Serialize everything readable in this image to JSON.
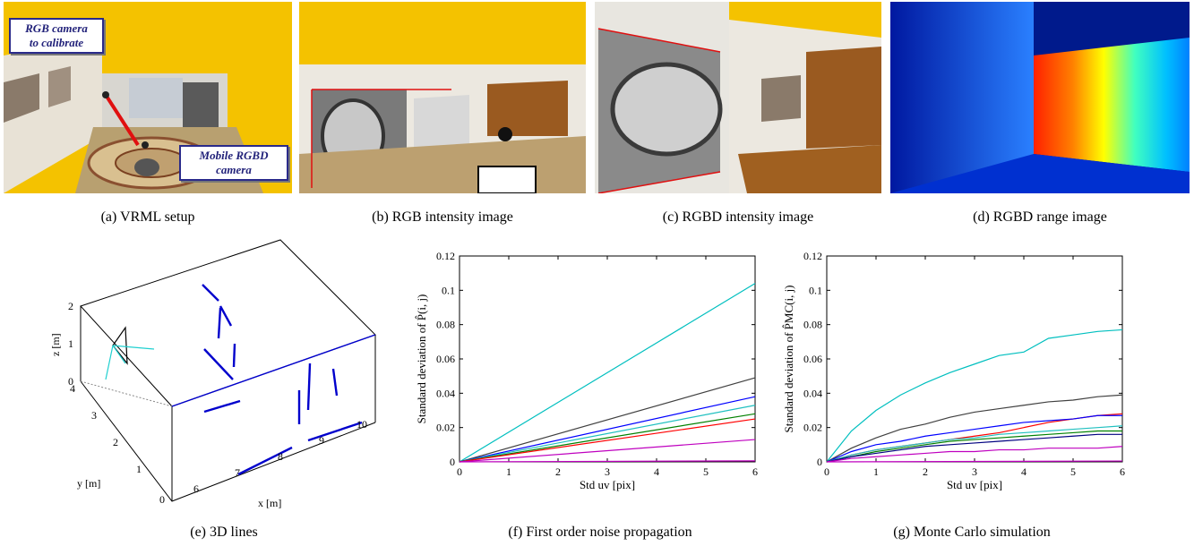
{
  "panels": {
    "a": {
      "caption": "(a) VRML setup",
      "callout1": [
        "RGB camera",
        "to calibrate"
      ],
      "callout2": [
        "Mobile RGBD",
        "camera"
      ]
    },
    "b": {
      "caption": "(b) RGB intensity image"
    },
    "c": {
      "caption": "(c) RGBD intensity image"
    },
    "d": {
      "caption": "(d) RGBD range image"
    },
    "e": {
      "caption": "(e) 3D lines",
      "xlabel": "x [m]",
      "ylabel": "y [m]",
      "zlabel": "z [m]",
      "xticks": [
        "6",
        "7",
        "8",
        "9",
        "10"
      ],
      "yticks": [
        "0",
        "1",
        "2",
        "3",
        "4"
      ],
      "zticks": [
        "0",
        "1",
        "2"
      ]
    },
    "f": {
      "caption": "(f) First order noise propagation"
    },
    "g": {
      "caption": "(g) Monte Carlo simulation"
    }
  },
  "chart_data": [
    {
      "type": "line",
      "xlabel": "Std uv [pix]",
      "ylabel": "Standard deviation of P̂(i, j)",
      "xlim": [
        0,
        6
      ],
      "ylim": [
        0,
        0.12
      ],
      "xticks": [
        "0",
        "1",
        "2",
        "3",
        "4",
        "5",
        "6"
      ],
      "yticks": [
        "0",
        "0.02",
        "0.04",
        "0.06",
        "0.08",
        "0.1",
        "0.12"
      ],
      "series": [
        {
          "color": "#00bfbf",
          "x": [
            0,
            6
          ],
          "y": [
            0,
            0.104
          ]
        },
        {
          "color": "#404040",
          "x": [
            0,
            6
          ],
          "y": [
            0,
            0.049
          ]
        },
        {
          "color": "#0000ff",
          "x": [
            0,
            6
          ],
          "y": [
            0,
            0.038
          ]
        },
        {
          "color": "#20c0c0",
          "x": [
            0,
            6
          ],
          "y": [
            0,
            0.033
          ]
        },
        {
          "color": "#008000",
          "x": [
            0,
            6
          ],
          "y": [
            0,
            0.028
          ]
        },
        {
          "color": "#ff0000",
          "x": [
            0,
            6
          ],
          "y": [
            0,
            0.025
          ]
        },
        {
          "color": "#bf00bf",
          "x": [
            0,
            6
          ],
          "y": [
            0,
            0.013
          ]
        },
        {
          "color": "#bf00bf",
          "x": [
            0,
            6
          ],
          "y": [
            0,
            0.0006
          ]
        }
      ]
    },
    {
      "type": "line",
      "xlabel": "Std uv [pix]",
      "ylabel": "Standard deviation of P̂MC(i, j)",
      "xlim": [
        0,
        6
      ],
      "ylim": [
        0,
        0.12
      ],
      "xticks": [
        "0",
        "1",
        "2",
        "3",
        "4",
        "5",
        "6"
      ],
      "yticks": [
        "0",
        "0.02",
        "0.04",
        "0.06",
        "0.08",
        "0.1",
        "0.12"
      ],
      "series": [
        {
          "color": "#00bfbf",
          "x": [
            0,
            0.5,
            1,
            1.5,
            2,
            2.5,
            3,
            3.5,
            4,
            4.5,
            5,
            5.5,
            6
          ],
          "y": [
            0,
            0.018,
            0.03,
            0.039,
            0.046,
            0.052,
            0.057,
            0.062,
            0.064,
            0.072,
            0.074,
            0.076,
            0.077
          ]
        },
        {
          "color": "#404040",
          "x": [
            0,
            0.5,
            1,
            1.5,
            2,
            2.5,
            3,
            3.5,
            4,
            4.5,
            5,
            5.5,
            6
          ],
          "y": [
            0,
            0.008,
            0.014,
            0.019,
            0.022,
            0.026,
            0.029,
            0.031,
            0.033,
            0.035,
            0.036,
            0.038,
            0.039
          ]
        },
        {
          "color": "#ff0000",
          "x": [
            0,
            0.5,
            1,
            1.5,
            2,
            2.5,
            3,
            3.5,
            4,
            4.5,
            5,
            5.5,
            6
          ],
          "y": [
            0,
            0.004,
            0.007,
            0.009,
            0.011,
            0.013,
            0.015,
            0.017,
            0.02,
            0.023,
            0.025,
            0.027,
            0.028
          ]
        },
        {
          "color": "#0000ff",
          "x": [
            0,
            0.5,
            1,
            1.5,
            2,
            2.5,
            3,
            3.5,
            4,
            4.5,
            5,
            5.5,
            6
          ],
          "y": [
            0,
            0.006,
            0.01,
            0.012,
            0.015,
            0.017,
            0.019,
            0.021,
            0.023,
            0.024,
            0.025,
            0.027,
            0.027
          ]
        },
        {
          "color": "#20c0c0",
          "x": [
            0,
            0.5,
            1,
            1.5,
            2,
            2.5,
            3,
            3.5,
            4,
            4.5,
            5,
            5.5,
            6
          ],
          "y": [
            0,
            0.004,
            0.007,
            0.009,
            0.011,
            0.013,
            0.014,
            0.016,
            0.017,
            0.018,
            0.019,
            0.02,
            0.021
          ]
        },
        {
          "color": "#008000",
          "x": [
            0,
            0.5,
            1,
            1.5,
            2,
            2.5,
            3,
            3.5,
            4,
            4.5,
            5,
            5.5,
            6
          ],
          "y": [
            0,
            0.003,
            0.006,
            0.008,
            0.01,
            0.012,
            0.013,
            0.014,
            0.015,
            0.016,
            0.017,
            0.018,
            0.018
          ]
        },
        {
          "color": "#000080",
          "x": [
            0,
            0.5,
            1,
            1.5,
            2,
            2.5,
            3,
            3.5,
            4,
            4.5,
            5,
            5.5,
            6
          ],
          "y": [
            0,
            0.003,
            0.005,
            0.007,
            0.009,
            0.01,
            0.011,
            0.012,
            0.013,
            0.014,
            0.015,
            0.016,
            0.016
          ]
        },
        {
          "color": "#bf00bf",
          "x": [
            0,
            0.5,
            1,
            1.5,
            2,
            2.5,
            3,
            3.5,
            4,
            4.5,
            5,
            5.5,
            6
          ],
          "y": [
            0,
            0.002,
            0.003,
            0.004,
            0.005,
            0.006,
            0.006,
            0.007,
            0.007,
            0.008,
            0.008,
            0.008,
            0.009
          ]
        },
        {
          "color": "#bf00bf",
          "x": [
            0,
            6
          ],
          "y": [
            0,
            0.0005
          ]
        }
      ]
    }
  ]
}
